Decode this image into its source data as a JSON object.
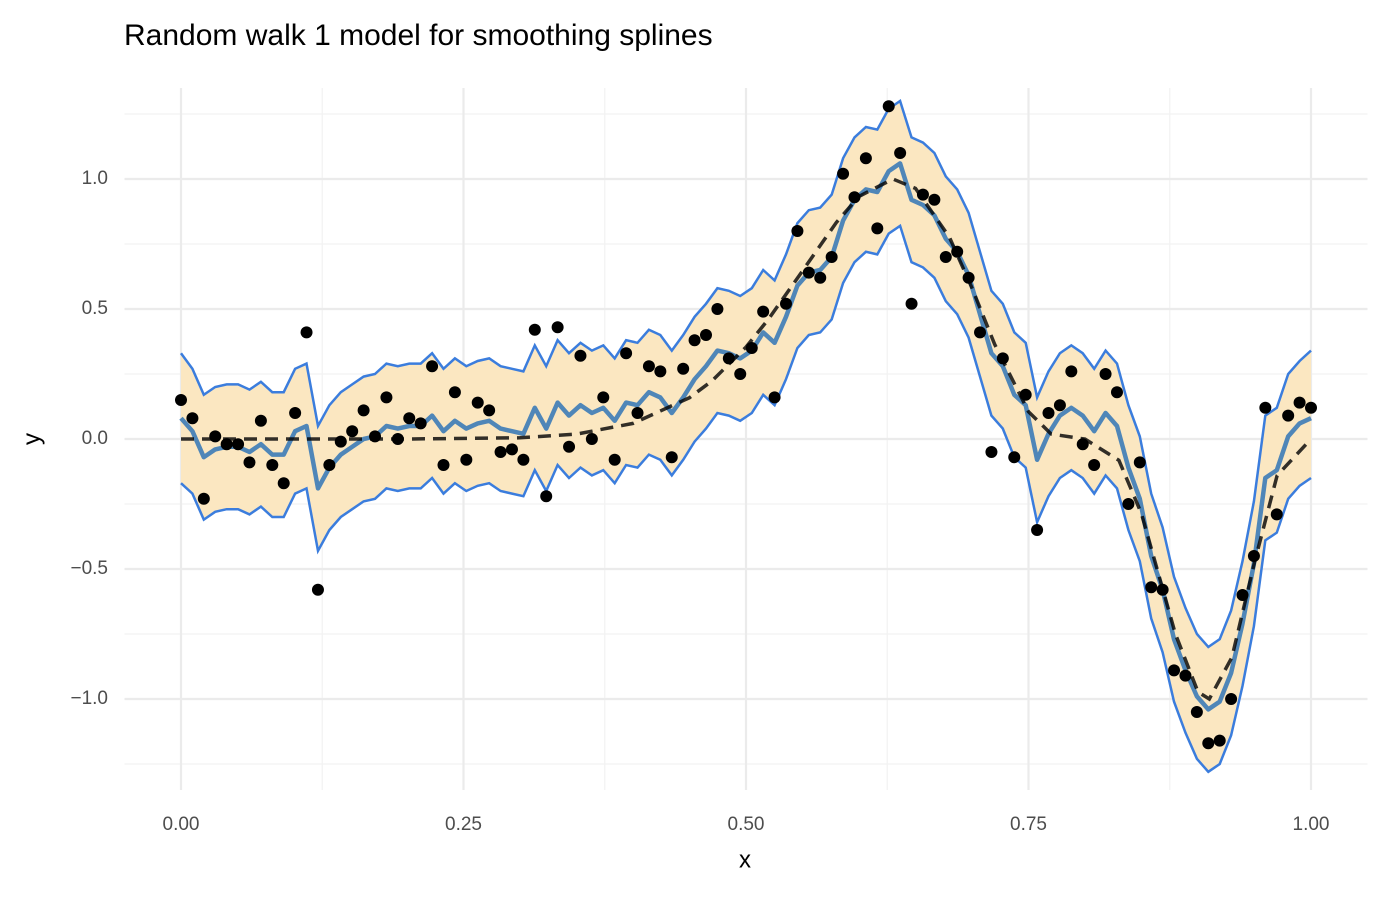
{
  "chart_data": {
    "type": "line",
    "title": "Random walk 1 model for smoothing splines",
    "x_label": "x",
    "y_label": "y",
    "xlim": [
      -0.05,
      1.05
    ],
    "ylim": [
      -1.35,
      1.35
    ],
    "xticks": [
      {
        "value": 0,
        "label": "0.00"
      },
      {
        "value": 0.25,
        "label": "0.25"
      },
      {
        "value": 0.5,
        "label": "0.50"
      },
      {
        "value": 0.75,
        "label": "0.75"
      },
      {
        "value": 1,
        "label": "1.00"
      }
    ],
    "yticks": [
      {
        "value": -1,
        "label": "−1.0"
      },
      {
        "value": -0.5,
        "label": "−0.5"
      },
      {
        "value": 0,
        "label": "0.0"
      },
      {
        "value": 0.5,
        "label": "0.5"
      },
      {
        "value": 1,
        "label": "1.0"
      }
    ],
    "minor_xticks": [
      0.125,
      0.375,
      0.625,
      0.875
    ],
    "minor_yticks": [
      -1.25,
      -0.75,
      -0.25,
      0.25,
      0.75,
      1.25
    ],
    "grid": true,
    "x": [
      0,
      0.0101,
      0.0202,
      0.0303,
      0.0404,
      0.0505,
      0.0606,
      0.0707,
      0.0808,
      0.0909,
      0.101,
      0.1111,
      0.1212,
      0.1313,
      0.1414,
      0.1515,
      0.1616,
      0.1717,
      0.1818,
      0.1919,
      0.202,
      0.2121,
      0.2222,
      0.2323,
      0.2424,
      0.2525,
      0.2626,
      0.2727,
      0.2828,
      0.2929,
      0.303,
      0.3131,
      0.3232,
      0.3333,
      0.3434,
      0.3535,
      0.3636,
      0.3737,
      0.3838,
      0.3939,
      0.404,
      0.4141,
      0.4242,
      0.4343,
      0.4444,
      0.4545,
      0.4646,
      0.4747,
      0.4848,
      0.4949,
      0.5051,
      0.5152,
      0.5253,
      0.5354,
      0.5455,
      0.5556,
      0.5657,
      0.5758,
      0.5859,
      0.596,
      0.6061,
      0.6162,
      0.6263,
      0.6364,
      0.6465,
      0.6566,
      0.6667,
      0.6768,
      0.6869,
      0.697,
      0.7071,
      0.7172,
      0.7273,
      0.7374,
      0.7475,
      0.7576,
      0.7677,
      0.7778,
      0.7879,
      0.798,
      0.8081,
      0.8182,
      0.8283,
      0.8384,
      0.8485,
      0.8586,
      0.8687,
      0.8788,
      0.8889,
      0.899,
      0.9091,
      0.9192,
      0.9293,
      0.9394,
      0.9495,
      0.9596,
      0.9697,
      0.9798,
      0.9899,
      1
    ],
    "band": {
      "fill": "#fbe7c1",
      "color": "#3b7ddd",
      "upper": [
        0.33,
        0.27,
        0.17,
        0.2,
        0.21,
        0.21,
        0.19,
        0.22,
        0.18,
        0.18,
        0.27,
        0.29,
        0.05,
        0.13,
        0.18,
        0.21,
        0.24,
        0.25,
        0.29,
        0.28,
        0.29,
        0.29,
        0.33,
        0.27,
        0.31,
        0.28,
        0.3,
        0.31,
        0.28,
        0.27,
        0.26,
        0.36,
        0.28,
        0.38,
        0.33,
        0.37,
        0.34,
        0.36,
        0.31,
        0.38,
        0.37,
        0.42,
        0.4,
        0.34,
        0.4,
        0.47,
        0.52,
        0.58,
        0.57,
        0.55,
        0.58,
        0.65,
        0.61,
        0.71,
        0.83,
        0.88,
        0.89,
        0.94,
        1.08,
        1.16,
        1.2,
        1.19,
        1.27,
        1.3,
        1.16,
        1.14,
        1.1,
        1.01,
        0.96,
        0.87,
        0.72,
        0.57,
        0.52,
        0.41,
        0.37,
        0.16,
        0.26,
        0.33,
        0.36,
        0.33,
        0.27,
        0.34,
        0.29,
        0.13,
        0.01,
        -0.21,
        -0.34,
        -0.53,
        -0.65,
        -0.75,
        -0.8,
        -0.77,
        -0.66,
        -0.47,
        -0.24,
        0.09,
        0.12,
        0.25,
        0.3,
        0.34
      ],
      "lower": [
        -0.17,
        -0.21,
        -0.31,
        -0.28,
        -0.27,
        -0.27,
        -0.29,
        -0.26,
        -0.3,
        -0.3,
        -0.21,
        -0.19,
        -0.43,
        -0.35,
        -0.3,
        -0.27,
        -0.24,
        -0.23,
        -0.19,
        -0.2,
        -0.19,
        -0.19,
        -0.15,
        -0.21,
        -0.17,
        -0.2,
        -0.18,
        -0.17,
        -0.2,
        -0.21,
        -0.22,
        -0.12,
        -0.2,
        -0.1,
        -0.15,
        -0.11,
        -0.14,
        -0.12,
        -0.17,
        -0.1,
        -0.11,
        -0.06,
        -0.08,
        -0.14,
        -0.08,
        -0.01,
        0.04,
        0.1,
        0.09,
        0.07,
        0.1,
        0.17,
        0.13,
        0.23,
        0.35,
        0.4,
        0.41,
        0.46,
        0.6,
        0.68,
        0.72,
        0.71,
        0.79,
        0.82,
        0.68,
        0.66,
        0.62,
        0.53,
        0.48,
        0.39,
        0.24,
        0.09,
        0.04,
        -0.07,
        -0.11,
        -0.32,
        -0.22,
        -0.15,
        -0.12,
        -0.15,
        -0.21,
        -0.14,
        -0.19,
        -0.35,
        -0.47,
        -0.69,
        -0.82,
        -1.01,
        -1.13,
        -1.23,
        -1.28,
        -1.25,
        -1.14,
        -0.95,
        -0.72,
        -0.39,
        -0.36,
        -0.23,
        -0.18,
        -0.15
      ]
    },
    "mean": {
      "color": "#4f86b8",
      "values": [
        0.08,
        0.03,
        -0.07,
        -0.04,
        -0.03,
        -0.03,
        -0.05,
        -0.02,
        -0.06,
        -0.06,
        0.03,
        0.05,
        -0.19,
        -0.11,
        -0.06,
        -0.03,
        0,
        0.01,
        0.05,
        0.04,
        0.05,
        0.05,
        0.09,
        0.03,
        0.07,
        0.04,
        0.06,
        0.07,
        0.04,
        0.03,
        0.02,
        0.12,
        0.04,
        0.14,
        0.09,
        0.13,
        0.1,
        0.12,
        0.07,
        0.14,
        0.13,
        0.18,
        0.16,
        0.1,
        0.16,
        0.23,
        0.28,
        0.34,
        0.33,
        0.31,
        0.34,
        0.41,
        0.37,
        0.47,
        0.59,
        0.64,
        0.65,
        0.7,
        0.84,
        0.92,
        0.96,
        0.95,
        1.03,
        1.06,
        0.92,
        0.9,
        0.86,
        0.77,
        0.72,
        0.63,
        0.48,
        0.33,
        0.28,
        0.17,
        0.13,
        -0.08,
        0.02,
        0.09,
        0.12,
        0.09,
        0.03,
        0.1,
        0.05,
        -0.11,
        -0.23,
        -0.45,
        -0.58,
        -0.77,
        -0.89,
        -0.99,
        -1.04,
        -1.01,
        -0.9,
        -0.71,
        -0.48,
        -0.15,
        -0.12,
        0.01,
        0.06,
        0.08
      ]
    },
    "points": {
      "color": "#000000",
      "values": [
        0.15,
        0.08,
        -0.23,
        0.01,
        -0.02,
        -0.02,
        -0.09,
        0.07,
        -0.1,
        -0.17,
        0.1,
        0.41,
        -0.58,
        -0.1,
        -0.01,
        0.03,
        0.11,
        0.01,
        0.16,
        0,
        0.08,
        0.06,
        0.28,
        -0.1,
        0.18,
        -0.08,
        0.14,
        0.11,
        -0.05,
        -0.04,
        -0.08,
        0.42,
        -0.22,
        0.43,
        -0.03,
        0.32,
        0,
        0.16,
        -0.08,
        0.33,
        0.1,
        0.28,
        0.26,
        -0.07,
        0.27,
        0.38,
        0.4,
        0.5,
        0.31,
        0.25,
        0.35,
        0.49,
        0.16,
        0.52,
        0.8,
        0.64,
        0.62,
        0.7,
        1.02,
        0.93,
        1.08,
        0.81,
        1.28,
        1.1,
        0.52,
        0.94,
        0.92,
        0.7,
        0.72,
        0.62,
        0.41,
        -0.05,
        0.31,
        -0.07,
        0.17,
        -0.35,
        0.1,
        0.13,
        0.26,
        -0.02,
        -0.1,
        0.25,
        0.18,
        -0.25,
        -0.09,
        -0.57,
        -0.58,
        -0.89,
        -0.91,
        -1.05,
        -1.17,
        -1.16,
        -1,
        -0.6,
        -0.45,
        0.12,
        -0.29,
        0.09,
        0.14,
        0.12
      ]
    },
    "truth": {
      "color": "#000000",
      "x": [
        0,
        0.1,
        0.2,
        0.3,
        0.35,
        0.4,
        0.45,
        0.47,
        0.5,
        0.52,
        0.55,
        0.58,
        0.6,
        0.63,
        0.65,
        0.68,
        0.7,
        0.72,
        0.75,
        0.77,
        0.8,
        0.83,
        0.85,
        0.88,
        0.9,
        0.91,
        0.93,
        0.95,
        0.97,
        1
      ],
      "values": [
        0,
        0,
        0.0001,
        0.0048,
        0.0188,
        0.06,
        0.159,
        0.2237,
        0.3536,
        0.4617,
        0.6466,
        0.833,
        0.9332,
        1,
        0.9638,
        0.776,
        0.5807,
        0.3645,
        0.1049,
        0.0194,
        -0.0004,
        -0.0821,
        -0.2878,
        -0.75,
        -0.9732,
        -1,
        -0.84,
        -0.4746,
        -0.1408,
        0
      ]
    }
  }
}
